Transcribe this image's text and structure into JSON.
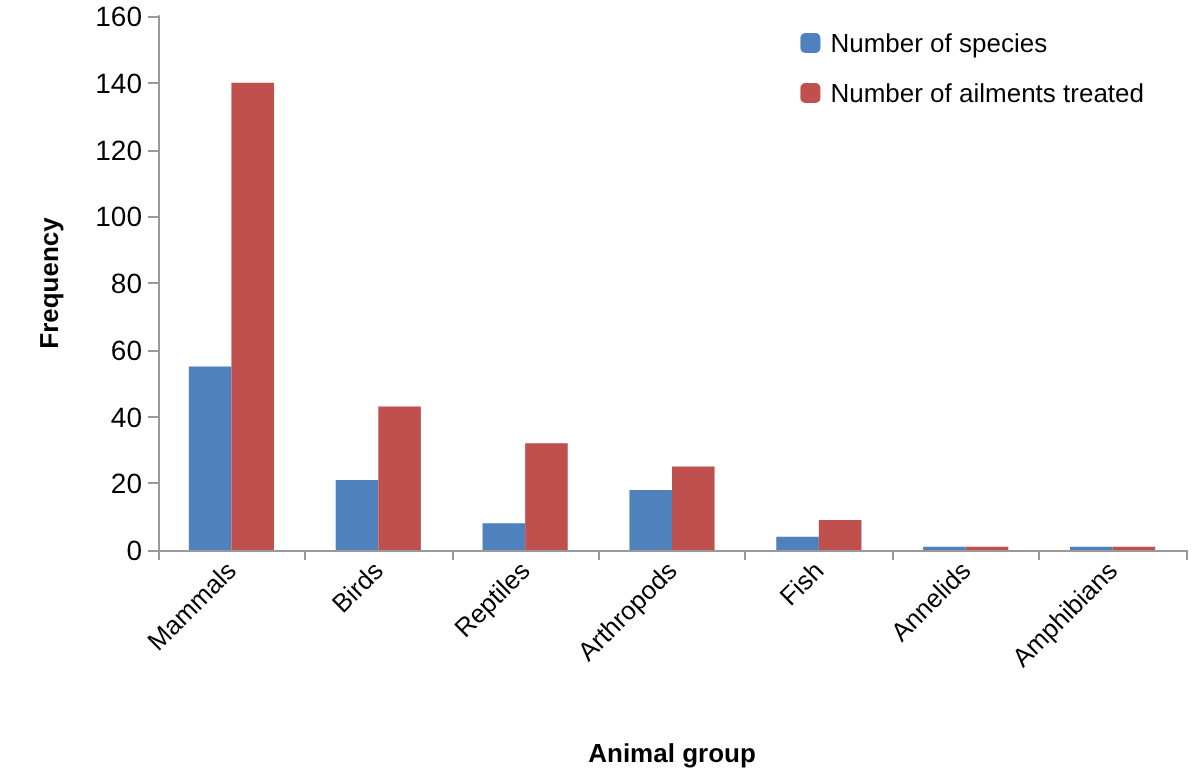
{
  "chart_data": {
    "type": "bar",
    "xlabel": "Animal group",
    "ylabel": "Frequency",
    "categories": [
      "Mammals",
      "Birds",
      "Reptiles",
      "Arthropods",
      "Fish",
      "Annelids",
      "Amphibians"
    ],
    "series": [
      {
        "name": "Number of species",
        "color": "#4f81bd",
        "values": [
          55,
          21,
          8,
          18,
          4,
          1,
          1
        ]
      },
      {
        "name": "Number of ailments treated",
        "color": "#c0504d",
        "values": [
          140,
          43,
          32,
          25,
          9,
          1,
          1
        ]
      }
    ],
    "ylim": [
      0,
      160
    ],
    "yticks": [
      0,
      20,
      40,
      60,
      80,
      100,
      120,
      140,
      160
    ],
    "grid": false,
    "legend": "top right"
  }
}
